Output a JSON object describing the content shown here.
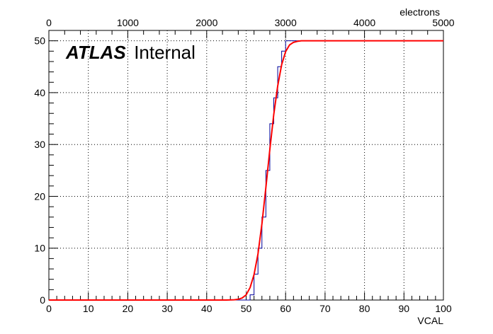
{
  "chart_data": {
    "type": "line",
    "title": "",
    "annotation": {
      "bold_text": "ATLAS",
      "plain_text": "Internal"
    },
    "xlabel": "VCAL",
    "x2label": "electrons",
    "ylabel": "",
    "xlim": [
      0,
      100
    ],
    "x2lim": [
      0,
      5000
    ],
    "ylim": [
      0,
      52
    ],
    "xticks": [
      0,
      10,
      20,
      30,
      40,
      50,
      60,
      70,
      80,
      90,
      100
    ],
    "x2ticks": [
      0,
      1000,
      2000,
      3000,
      4000,
      5000
    ],
    "yticks": [
      0,
      10,
      20,
      30,
      40,
      50
    ],
    "grid": true,
    "legend": "none",
    "series": [
      {
        "kind": "histogram-step",
        "color": "#000099",
        "bin_width": 1,
        "x": [
          0,
          1,
          2,
          3,
          4,
          5,
          6,
          7,
          8,
          9,
          10,
          11,
          12,
          13,
          14,
          15,
          16,
          17,
          18,
          19,
          20,
          21,
          22,
          23,
          24,
          25,
          26,
          27,
          28,
          29,
          30,
          31,
          32,
          33,
          34,
          35,
          36,
          37,
          38,
          39,
          40,
          41,
          42,
          43,
          44,
          45,
          46,
          47,
          48,
          49,
          50,
          51,
          52,
          53,
          54,
          55,
          56,
          57,
          58,
          59,
          60,
          61,
          62,
          63,
          64,
          65,
          66,
          67,
          68,
          69,
          70,
          71,
          72,
          73,
          74,
          75,
          76,
          77,
          78,
          79,
          80,
          81,
          82,
          83,
          84,
          85,
          86,
          87,
          88,
          89,
          90,
          91,
          92,
          93,
          94,
          95,
          96,
          97,
          98,
          99
        ],
        "values": [
          0,
          0,
          0,
          0,
          0,
          0,
          0,
          0,
          0,
          0,
          0,
          0,
          0,
          0,
          0,
          0,
          0,
          0,
          0,
          0,
          0,
          0,
          0,
          0,
          0,
          0,
          0,
          0,
          0,
          0,
          0,
          0,
          0,
          0,
          0,
          0,
          0,
          0,
          0,
          0,
          0,
          0,
          0,
          0,
          0,
          0,
          0,
          0,
          0,
          0,
          0,
          1,
          5,
          10,
          16,
          25,
          34,
          39,
          45,
          48,
          50,
          50,
          50,
          50,
          50,
          50,
          50,
          50,
          50,
          50,
          50,
          50,
          50,
          50,
          50,
          50,
          50,
          50,
          50,
          50,
          50,
          50,
          50,
          50,
          50,
          50,
          50,
          50,
          50,
          50,
          50,
          50,
          50,
          50,
          50,
          50,
          50,
          50,
          50,
          50
        ]
      },
      {
        "kind": "fit-curve",
        "color": "#ff0000",
        "x": [
          0,
          45,
          47,
          48,
          49,
          50,
          51,
          52,
          53,
          54,
          55,
          56,
          57,
          58,
          59,
          60,
          61,
          62,
          63,
          64,
          66,
          70,
          80,
          100
        ],
        "values": [
          0,
          0,
          0.05,
          0.15,
          0.4,
          1.0,
          2.4,
          4.9,
          8.9,
          14.7,
          21.7,
          29.0,
          35.8,
          41.3,
          45.4,
          47.9,
          49.2,
          49.7,
          49.9,
          50,
          50,
          50,
          50,
          50
        ]
      }
    ],
    "colors": {
      "histogram": "#000099",
      "fit": "#ff0000",
      "grid": "#000000",
      "axis": "#000000"
    }
  }
}
